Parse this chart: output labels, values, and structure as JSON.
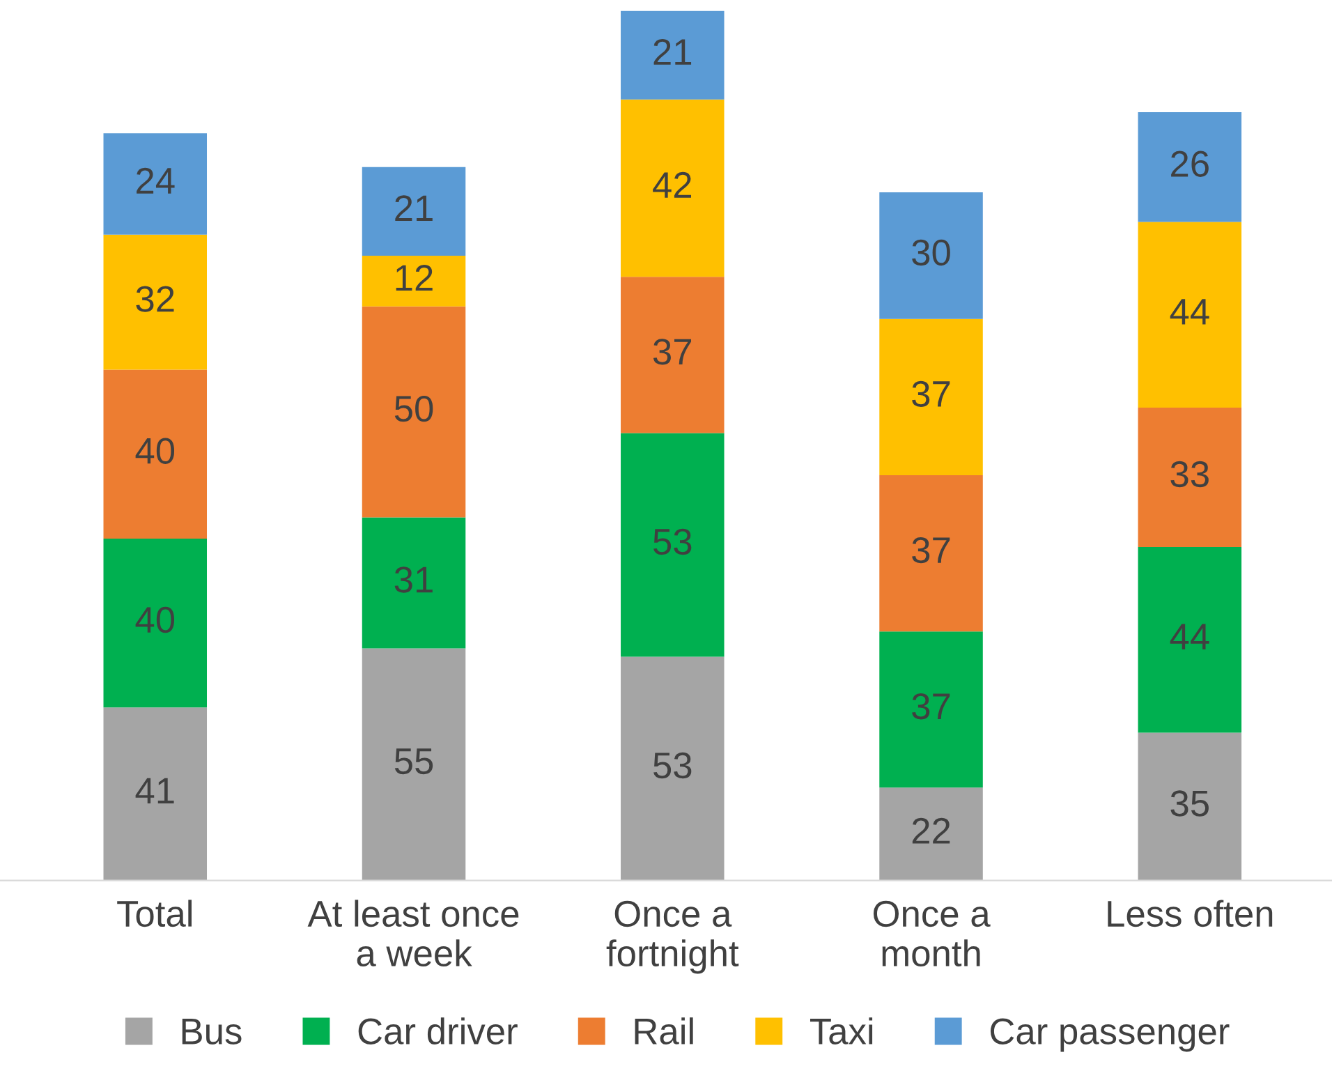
{
  "chart_data": {
    "type": "bar",
    "stacked": true,
    "data_labels": true,
    "legend": "bottom",
    "marker": "square",
    "grid": false,
    "categories": [
      "Total",
      "At least once\na week",
      "Once a\nfortnight",
      "Once a\nmonth",
      "Less often"
    ],
    "series": [
      {
        "name": "Bus",
        "color": "#a5a5a5",
        "values": [
          41,
          55,
          53,
          22,
          35
        ]
      },
      {
        "name": "Car driver",
        "color": "#00b050",
        "values": [
          40,
          31,
          53,
          37,
          44
        ]
      },
      {
        "name": "Rail",
        "color": "#ed7d31",
        "values": [
          40,
          50,
          37,
          37,
          33
        ]
      },
      {
        "name": "Taxi",
        "color": "#ffc000",
        "values": [
          32,
          12,
          42,
          37,
          44
        ]
      },
      {
        "name": "Car passenger",
        "color": "#5b9bd5",
        "values": [
          24,
          21,
          21,
          30,
          26
        ]
      }
    ]
  }
}
